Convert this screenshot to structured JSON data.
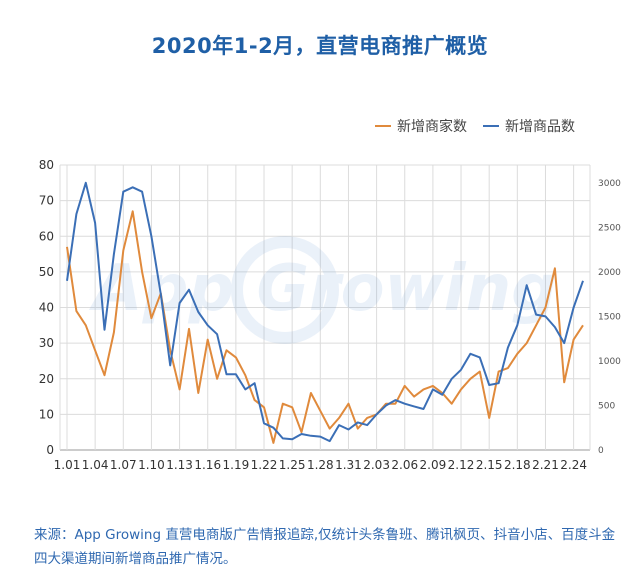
{
  "title": "2020年1-2月，直营电商推广概览",
  "source_text": "来源：App Growing 直营电商版广告情报追踪,仅统计头条鲁班、腾讯枫页、抖音小店、百度斗金四大渠道期间新增商品推广情况。",
  "watermark": "App Growing",
  "colors": {
    "merchants": "#e08a3c",
    "products": "#3b6fb6",
    "title": "#1f5fa6",
    "source": "#2f68b0"
  },
  "chart_data": {
    "type": "line",
    "title": "2020年1-2月，直营电商推广概览",
    "legend_position": "top-right",
    "grid": true,
    "x": [
      "1.01",
      "1.02",
      "1.03",
      "1.04",
      "1.05",
      "1.06",
      "1.07",
      "1.08",
      "1.09",
      "1.10",
      "1.11",
      "1.12",
      "1.13",
      "1.14",
      "1.15",
      "1.16",
      "1.17",
      "1.18",
      "1.19",
      "1.20",
      "1.21",
      "1.22",
      "1.23",
      "1.24",
      "1.25",
      "1.26",
      "1.27",
      "1.28",
      "1.29",
      "1.30",
      "1.31",
      "2.01",
      "2.02",
      "2.03",
      "2.04",
      "2.05",
      "2.06",
      "2.07",
      "2.08",
      "2.09",
      "2.10",
      "2.11",
      "2.12",
      "2.13",
      "2.14",
      "2.15",
      "2.16",
      "2.17",
      "2.18",
      "2.19",
      "2.20",
      "2.21",
      "2.22",
      "2.23",
      "2.24",
      "2.25"
    ],
    "x_tick_labels": [
      "1.01",
      "1.04",
      "1.07",
      "1.10",
      "1.13",
      "1.16",
      "1.19",
      "1.22",
      "1.25",
      "1.28",
      "1.31",
      "2.03",
      "2.06",
      "2.09",
      "2.12",
      "2.15",
      "2.18",
      "2.21",
      "2.24"
    ],
    "y_left": {
      "min": 0,
      "max": 80,
      "ticks": [
        0,
        10,
        20,
        30,
        40,
        50,
        60,
        70,
        80
      ]
    },
    "y_right": {
      "min": 0,
      "max": 3200,
      "ticks": [
        0,
        500,
        1000,
        1500,
        2000,
        2500,
        3000
      ]
    },
    "series": [
      {
        "name": "新增商家数",
        "axis": "left",
        "color": "#e08a3c",
        "values": [
          57,
          39,
          35,
          28,
          21,
          33,
          56,
          67,
          50,
          37,
          44,
          28,
          17,
          34,
          16,
          31,
          20,
          28,
          26,
          21,
          14,
          12,
          2,
          13,
          12,
          5,
          16,
          11,
          6,
          9,
          13,
          6,
          9,
          10,
          13,
          13,
          18,
          15,
          17,
          18,
          16,
          13,
          17,
          20,
          22,
          9,
          22,
          23,
          27,
          30,
          35,
          40,
          51,
          19,
          31,
          35
        ]
      },
      {
        "name": "新增商品数",
        "axis": "right",
        "color": "#3b6fb6",
        "values": [
          1900,
          2650,
          3000,
          2550,
          1350,
          2200,
          2900,
          2950,
          2900,
          2400,
          1750,
          950,
          1650,
          1800,
          1550,
          1400,
          1300,
          850,
          850,
          680,
          750,
          300,
          250,
          130,
          120,
          180,
          160,
          150,
          100,
          280,
          230,
          310,
          280,
          400,
          500,
          560,
          520,
          490,
          460,
          680,
          620,
          800,
          900,
          1080,
          1040,
          730,
          750,
          1150,
          1400,
          1850,
          1520,
          1500,
          1380,
          1200,
          1600,
          1900
        ]
      }
    ]
  }
}
